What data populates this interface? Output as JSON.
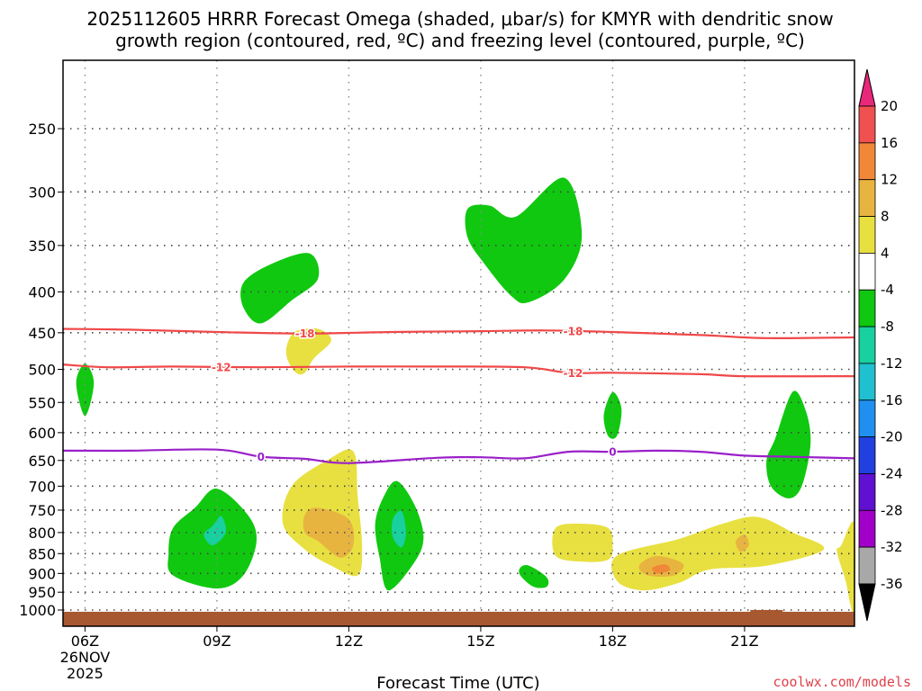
{
  "chart_data": {
    "type": "time-height cross section",
    "title_line1": "2025112605 HRRR Forecast Omega (shaded, μbar/s) for KMYR with dendritic snow",
    "title_line2": "growth region (contoured, red, ºC) and freezing level (contoured, purple, ºC)",
    "xlabel": "Forecast Time (UTC)",
    "credit": "coolwx.com/models",
    "x_ticks": [
      {
        "hour": 6,
        "label": "06Z",
        "sub1": "26NOV",
        "sub2": "2025"
      },
      {
        "hour": 9,
        "label": "09Z"
      },
      {
        "hour": 12,
        "label": "12Z"
      },
      {
        "hour": 15,
        "label": "15Z"
      },
      {
        "hour": 18,
        "label": "18Z"
      },
      {
        "hour": 21,
        "label": "21Z"
      }
    ],
    "x_range": [
      5.5,
      23.5
    ],
    "y_ticks": [
      250,
      300,
      350,
      400,
      450,
      500,
      550,
      600,
      650,
      700,
      750,
      800,
      850,
      900,
      950,
      1000
    ],
    "y_range_hpa": [
      200,
      1020
    ],
    "colorbar": {
      "labels": [
        "20",
        "16",
        "12",
        "8",
        "4",
        "-4",
        "-8",
        "-12",
        "-16",
        "-20",
        "-24",
        "-28",
        "-32",
        "-36"
      ],
      "bins": [
        {
          "color": "#e8287a"
        },
        {
          "color": "#f05050"
        },
        {
          "color": "#f08838"
        },
        {
          "color": "#e8b440"
        },
        {
          "color": "#e8e040"
        },
        {
          "color": "#ffffff"
        },
        {
          "color": "#10c810"
        },
        {
          "color": "#18d0a0"
        },
        {
          "color": "#20c0d0"
        },
        {
          "color": "#2090f0"
        },
        {
          "color": "#2040e0"
        },
        {
          "color": "#6010d0"
        },
        {
          "color": "#a000c8"
        },
        {
          "color": "#a8a8a8"
        },
        {
          "color": "#000000"
        }
      ]
    },
    "contours": [
      {
        "name": "-18C",
        "color": "#f04848",
        "label": "-18",
        "points": [
          [
            5.5,
            445
          ],
          [
            7,
            446
          ],
          [
            9,
            449
          ],
          [
            11,
            451
          ],
          [
            13,
            449
          ],
          [
            15,
            448
          ],
          [
            16.5,
            447
          ],
          [
            18,
            449
          ],
          [
            20,
            453
          ],
          [
            21.5,
            457
          ],
          [
            23.5,
            456
          ]
        ],
        "label_hours": [
          11.0,
          17.1
        ]
      },
      {
        "name": "-12C",
        "color": "#f04848",
        "label": "-12",
        "points": [
          [
            5.5,
            493
          ],
          [
            6.5,
            497
          ],
          [
            8,
            496
          ],
          [
            10,
            497
          ],
          [
            12,
            496
          ],
          [
            14,
            496
          ],
          [
            16,
            497
          ],
          [
            17,
            505
          ],
          [
            18,
            505
          ],
          [
            20,
            507
          ],
          [
            21,
            510
          ],
          [
            23.5,
            510
          ]
        ],
        "label_hours": [
          9.1,
          17.1
        ]
      },
      {
        "name": "0C",
        "color": "#9a20c8",
        "label": "0",
        "points": [
          [
            5.5,
            632
          ],
          [
            7,
            632
          ],
          [
            9,
            630
          ],
          [
            10,
            643
          ],
          [
            11,
            647
          ],
          [
            12,
            655
          ],
          [
            14,
            645
          ],
          [
            15,
            644
          ],
          [
            16,
            646
          ],
          [
            17,
            634
          ],
          [
            18,
            634
          ],
          [
            19,
            632
          ],
          [
            20,
            634
          ],
          [
            21,
            641
          ],
          [
            22,
            643
          ],
          [
            23.5,
            646
          ]
        ],
        "label_hours": [
          10.0,
          18.0
        ]
      }
    ],
    "omega_regions": [
      {
        "value": -6,
        "color": "#10c810",
        "points": [
          [
            14.7,
            315
          ],
          [
            15.2,
            312
          ],
          [
            15.8,
            322
          ],
          [
            16.9,
            288
          ],
          [
            17.3,
            340
          ],
          [
            16.9,
            386
          ],
          [
            16.1,
            412
          ],
          [
            15.7,
            405
          ],
          [
            15.1,
            370
          ],
          [
            14.7,
            342
          ]
        ]
      },
      {
        "value": -6,
        "color": "#10c810",
        "points": [
          [
            9.6,
            390
          ],
          [
            10.2,
            370
          ],
          [
            11.1,
            358
          ],
          [
            11.3,
            385
          ],
          [
            10.7,
            410
          ],
          [
            10.0,
            438
          ],
          [
            9.6,
            418
          ]
        ]
      },
      {
        "value": 6,
        "color": "#e8e040",
        "points": [
          [
            10.8,
            448
          ],
          [
            11.3,
            445
          ],
          [
            11.6,
            460
          ],
          [
            11.2,
            485
          ],
          [
            11.0,
            505
          ],
          [
            10.8,
            505
          ],
          [
            10.6,
            485
          ],
          [
            10.6,
            465
          ]
        ]
      },
      {
        "value": -6,
        "color": "#10c810",
        "points": [
          [
            6.0,
            492
          ],
          [
            6.2,
            520
          ],
          [
            6.0,
            572
          ],
          [
            5.8,
            520
          ]
        ]
      },
      {
        "value": -6,
        "color": "#10c810",
        "points": [
          [
            18.0,
            534
          ],
          [
            18.2,
            560
          ],
          [
            18.1,
            605
          ],
          [
            17.9,
            606
          ],
          [
            17.8,
            570
          ]
        ]
      },
      {
        "value": -6,
        "color": "#10c810",
        "points": [
          [
            22.1,
            533
          ],
          [
            22.4,
            565
          ],
          [
            22.5,
            620
          ],
          [
            22.3,
            700
          ],
          [
            22.0,
            725
          ],
          [
            21.6,
            700
          ],
          [
            21.5,
            650
          ],
          [
            21.7,
            610
          ]
        ]
      },
      {
        "value": -6,
        "color": "#10c810",
        "points": [
          [
            8.0,
            790
          ],
          [
            8.5,
            745
          ],
          [
            9.0,
            705
          ],
          [
            9.7,
            760
          ],
          [
            9.9,
            820
          ],
          [
            9.6,
            905
          ],
          [
            9.0,
            940
          ],
          [
            8.0,
            905
          ],
          [
            7.9,
            850
          ]
        ]
      },
      {
        "value": -10,
        "color": "#18d0a0",
        "points": [
          [
            8.9,
            785
          ],
          [
            9.1,
            763
          ],
          [
            9.2,
            800
          ],
          [
            8.9,
            830
          ],
          [
            8.7,
            805
          ]
        ]
      },
      {
        "value": 6,
        "color": "#e8e040",
        "points": [
          [
            10.7,
            700
          ],
          [
            11.5,
            650
          ],
          [
            12.1,
            633
          ],
          [
            12.2,
            720
          ],
          [
            12.3,
            830
          ],
          [
            12.2,
            905
          ],
          [
            11.6,
            880
          ],
          [
            11.0,
            840
          ],
          [
            10.5,
            780
          ]
        ]
      },
      {
        "value": 10,
        "color": "#e8b440",
        "points": [
          [
            11.0,
            760
          ],
          [
            11.3,
            745
          ],
          [
            12.0,
            770
          ],
          [
            12.1,
            830
          ],
          [
            11.8,
            860
          ],
          [
            11.3,
            820
          ],
          [
            11.0,
            800
          ]
        ]
      },
      {
        "value": -6,
        "color": "#10c810",
        "points": [
          [
            12.8,
            720
          ],
          [
            13.1,
            690
          ],
          [
            13.5,
            740
          ],
          [
            13.7,
            810
          ],
          [
            13.5,
            870
          ],
          [
            12.9,
            945
          ],
          [
            12.7,
            860
          ],
          [
            12.6,
            780
          ]
        ]
      },
      {
        "value": -10,
        "color": "#18d0a0",
        "points": [
          [
            13.0,
            770
          ],
          [
            13.2,
            752
          ],
          [
            13.3,
            800
          ],
          [
            13.2,
            835
          ],
          [
            13.0,
            810
          ]
        ]
      },
      {
        "value": 6,
        "color": "#e8e040",
        "points": [
          [
            16.7,
            790
          ],
          [
            17.3,
            780
          ],
          [
            17.9,
            790
          ],
          [
            18.0,
            830
          ],
          [
            17.9,
            865
          ],
          [
            17.3,
            870
          ],
          [
            16.7,
            855
          ]
        ]
      },
      {
        "value": 6,
        "color": "#e8e040",
        "points": [
          [
            18.1,
            855
          ],
          [
            19.5,
            815
          ],
          [
            20.5,
            780
          ],
          [
            21.3,
            765
          ],
          [
            22.1,
            800
          ],
          [
            22.8,
            840
          ],
          [
            21.5,
            880
          ],
          [
            20.2,
            890
          ],
          [
            19.5,
            925
          ],
          [
            18.7,
            945
          ],
          [
            18.1,
            920
          ]
        ]
      },
      {
        "value": 10,
        "color": "#e8b440",
        "points": [
          [
            18.6,
            880
          ],
          [
            19.0,
            856
          ],
          [
            19.6,
            875
          ],
          [
            19.4,
            905
          ],
          [
            18.8,
            905
          ]
        ]
      },
      {
        "value": 14,
        "color": "#f08838",
        "points": [
          [
            18.9,
            885
          ],
          [
            19.2,
            877
          ],
          [
            19.3,
            892
          ],
          [
            19.0,
            900
          ]
        ]
      },
      {
        "value": 10,
        "color": "#e8b440",
        "points": [
          [
            20.8,
            820
          ],
          [
            21.0,
            805
          ],
          [
            21.1,
            830
          ],
          [
            20.9,
            845
          ]
        ]
      },
      {
        "value": 6,
        "color": "#e8e040",
        "points": [
          [
            23.2,
            830
          ],
          [
            23.5,
            780
          ],
          [
            23.5,
            1000
          ],
          [
            23.4,
            980
          ],
          [
            23.3,
            920
          ],
          [
            23.1,
            845
          ]
        ]
      },
      {
        "value": -6,
        "color": "#10c810",
        "points": [
          [
            15.9,
            885
          ],
          [
            16.1,
            880
          ],
          [
            16.5,
            910
          ],
          [
            16.5,
            935
          ],
          [
            16.2,
            935
          ],
          [
            15.9,
            905
          ]
        ]
      }
    ],
    "terrain": {
      "color": "#a85830",
      "top_hpa": 1005,
      "bump_hour": 21.5
    }
  }
}
